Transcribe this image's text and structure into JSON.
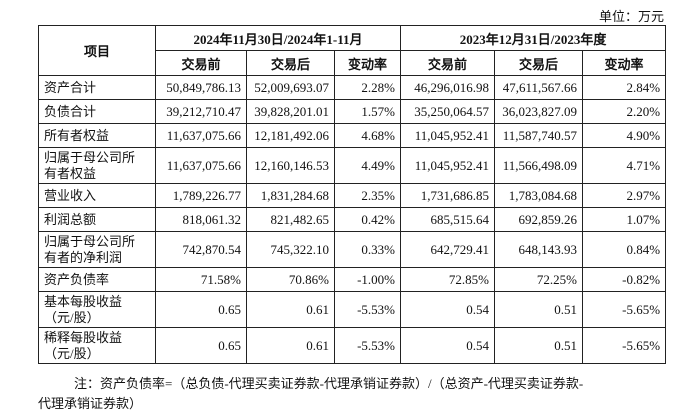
{
  "unit": "单位：万元",
  "table": {
    "corner": "项目",
    "groups": [
      "2024年11月30日/2024年1-11月",
      "2023年12月31日/2023年度"
    ],
    "subheaders": [
      "交易前",
      "交易后",
      "变动率",
      "交易前",
      "交易后",
      "变动率"
    ],
    "rows": [
      [
        "资产合计",
        "50,849,786.13",
        "52,009,693.07",
        "2.28%",
        "46,296,016.98",
        "47,611,567.66",
        "2.84%"
      ],
      [
        "负债合计",
        "39,212,710.47",
        "39,828,201.01",
        "1.57%",
        "35,250,064.57",
        "36,023,827.09",
        "2.20%"
      ],
      [
        "所有者权益",
        "11,637,075.66",
        "12,181,492.06",
        "4.68%",
        "11,045,952.41",
        "11,587,740.57",
        "4.90%"
      ],
      [
        "归属于母公司所有者权益",
        "11,637,075.66",
        "12,160,146.53",
        "4.49%",
        "11,045,952.41",
        "11,566,498.09",
        "4.71%"
      ],
      [
        "营业收入",
        "1,789,226.77",
        "1,831,284.68",
        "2.35%",
        "1,731,686.85",
        "1,783,084.68",
        "2.97%"
      ],
      [
        "利润总额",
        "818,061.32",
        "821,482.65",
        "0.42%",
        "685,515.64",
        "692,859.26",
        "1.07%"
      ],
      [
        "归属于母公司所有者的净利润",
        "742,870.54",
        "745,322.10",
        "0.33%",
        "642,729.41",
        "648,143.93",
        "0.84%"
      ],
      [
        "资产负债率",
        "71.58%",
        "70.86%",
        "-1.00%",
        "72.85%",
        "72.25%",
        "-0.82%"
      ],
      [
        "基本每股收益（元/股）",
        "0.65",
        "0.61",
        "-5.53%",
        "0.54",
        "0.51",
        "-5.65%"
      ],
      [
        "稀释每股收益（元/股）",
        "0.65",
        "0.61",
        "-5.53%",
        "0.54",
        "0.51",
        "-5.65%"
      ]
    ]
  },
  "note": [
    "注：资产负债率=（总负债-代理买卖证券款-代理承销证券款）/（总资产-代理买卖证券款-",
    "代理承销证券款）"
  ]
}
